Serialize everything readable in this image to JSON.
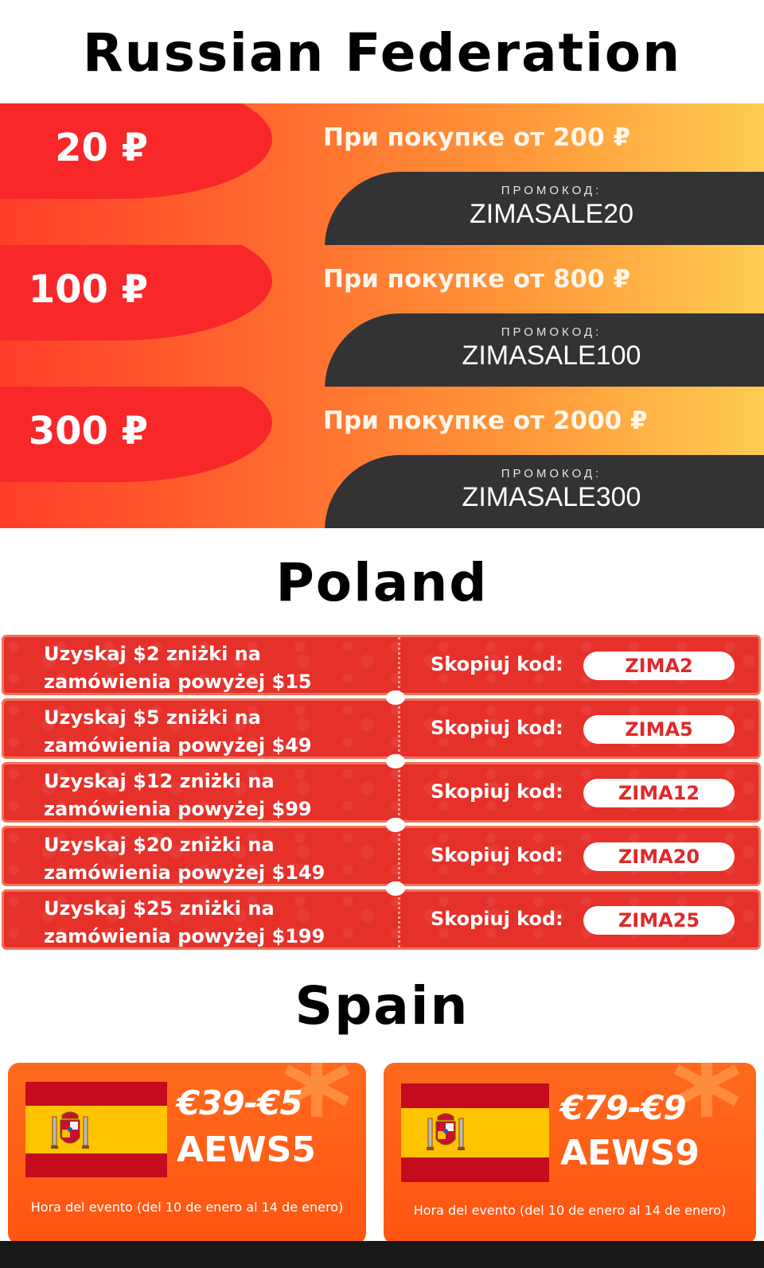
{
  "russia": {
    "heading": "Russian Federation",
    "cards": [
      {
        "amount": "20 ₽",
        "condition": "При покупке от  200 ₽",
        "promo_label": "ПРОМОКОД:",
        "code": "ZIMASALE20"
      },
      {
        "amount": "100 ₽",
        "condition": "При покупке от  800 ₽",
        "promo_label": "ПРОМОКОД:",
        "code": "ZIMASALE100"
      },
      {
        "amount": "300 ₽",
        "condition": "При покупке от 2000 ₽",
        "promo_label": "ПРОМОКОД:",
        "code": "ZIMASALE300"
      }
    ]
  },
  "poland": {
    "heading": "Poland",
    "coupons": [
      {
        "line1": "Uzyskaj $2 zniżki na",
        "line2": "zamówienia powyżej $15",
        "copy_label": "Skopiuj kod:",
        "code": "ZIMA2"
      },
      {
        "line1": "Uzyskaj $5 zniżki na",
        "line2": "zamówienia powyżej $49",
        "copy_label": "Skopiuj kod:",
        "code": "ZIMA5"
      },
      {
        "line1": "Uzyskaj $12 zniżki na",
        "line2": "zamówienia powyżej $99",
        "copy_label": "Skopiuj kod:",
        "code": "ZIMA12"
      },
      {
        "line1": "Uzyskaj $20 zniżki na",
        "line2": "zamówienia powyżej $149",
        "copy_label": "Skopiuj kod:",
        "code": "ZIMA20"
      },
      {
        "line1": "Uzyskaj $25 zniżki na",
        "line2": "zamówienia powyżej $199",
        "copy_label": "Skopiuj kod:",
        "code": "ZIMA25"
      }
    ]
  },
  "spain": {
    "heading": "Spain",
    "cards": [
      {
        "price": "€39-€5",
        "code": "AEWS5",
        "event": "Hora del evento (del 10 de enero al 14 de enero)",
        "icon": "spain-flag-icon"
      },
      {
        "price": "€79-€9",
        "code": "AEWS9",
        "event": "Hora del evento (del 10 de enero al 14 de enero)",
        "icon": "spain-flag-icon"
      }
    ]
  },
  "colors": {
    "russia_red": "#f8282a",
    "russia_dark": "#333336",
    "poland_red": "#e6302a",
    "spain_orange": "#ff5a14"
  }
}
